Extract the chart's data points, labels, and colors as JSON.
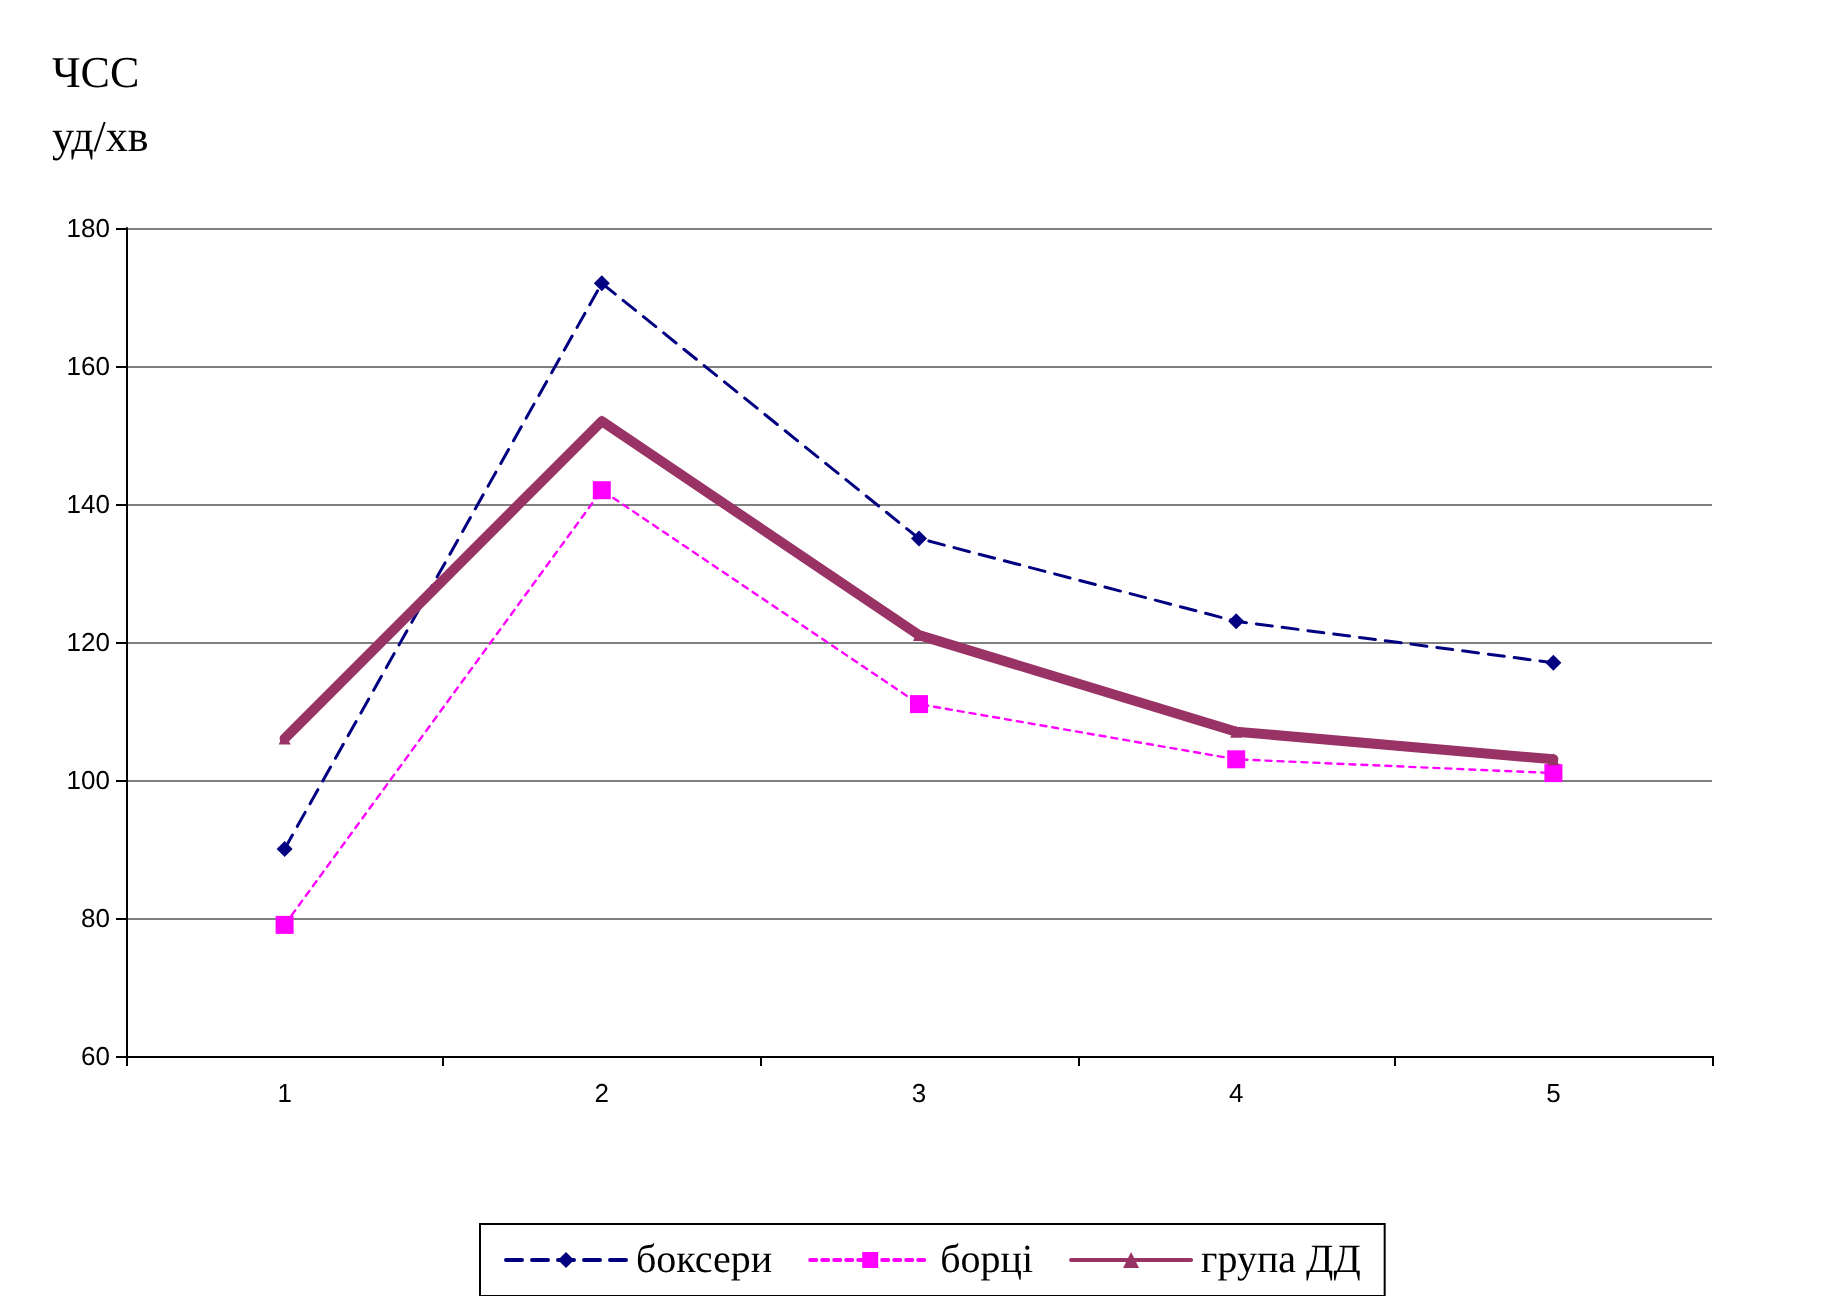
{
  "chart_data": {
    "type": "line",
    "ylabel": "ЧСС\nуд/хв",
    "categories": [
      "1",
      "2",
      "3",
      "4",
      "5"
    ],
    "series": [
      {
        "name": "боксери",
        "color": "#000080",
        "values": [
          90,
          172,
          135,
          123,
          117
        ],
        "marker": "diamond",
        "line_style": "dashed"
      },
      {
        "name": "борці",
        "color": "#ff00ff",
        "values": [
          79,
          142,
          111,
          103,
          101
        ],
        "marker": "square",
        "line_style": "dotted"
      },
      {
        "name": "група ДД",
        "color": "#993366",
        "values": [
          106,
          152,
          121,
          107,
          103
        ],
        "marker": "triangle",
        "line_style": "solid"
      }
    ],
    "ylim": [
      60,
      180
    ],
    "yticks": [
      60,
      80,
      100,
      120,
      140,
      160,
      180
    ],
    "grid": "y",
    "legend": "bottom"
  }
}
